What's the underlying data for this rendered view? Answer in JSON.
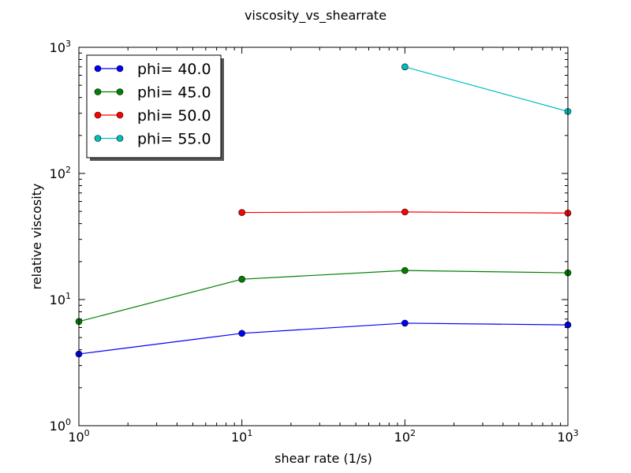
{
  "chart_data": {
    "type": "line",
    "title": "viscosity_vs_shearrate",
    "xlabel": "shear rate (1/s)",
    "ylabel": "relative viscosity",
    "x_scale": "log",
    "y_scale": "log",
    "xlim": [
      1,
      1000
    ],
    "ylim": [
      1,
      1000
    ],
    "x_ticks": [
      {
        "value": 1,
        "base": "10",
        "exp": "0"
      },
      {
        "value": 10,
        "base": "10",
        "exp": "1"
      },
      {
        "value": 100,
        "base": "10",
        "exp": "2"
      },
      {
        "value": 1000,
        "base": "10",
        "exp": "3"
      }
    ],
    "y_ticks": [
      {
        "value": 1,
        "base": "10",
        "exp": "0"
      },
      {
        "value": 10,
        "base": "10",
        "exp": "1"
      },
      {
        "value": 100,
        "base": "10",
        "exp": "2"
      },
      {
        "value": 1000,
        "base": "10",
        "exp": "3"
      }
    ],
    "grid": false,
    "legend_position": "top-left",
    "series": [
      {
        "name": "phi= 40.0",
        "color": "#0000ff",
        "x": [
          1,
          10,
          100,
          1000
        ],
        "y": [
          3.7,
          5.4,
          6.5,
          6.3
        ]
      },
      {
        "name": "phi= 45.0",
        "color": "#008000",
        "x": [
          1,
          10,
          100,
          1000
        ],
        "y": [
          6.7,
          14.5,
          17.0,
          16.3
        ]
      },
      {
        "name": "phi= 50.0",
        "color": "#ff0000",
        "x": [
          10,
          100,
          1000
        ],
        "y": [
          49.0,
          49.5,
          48.5
        ]
      },
      {
        "name": "phi= 55.0",
        "color": "#00bfbf",
        "x": [
          100,
          1000
        ],
        "y": [
          700,
          310
        ]
      }
    ]
  }
}
